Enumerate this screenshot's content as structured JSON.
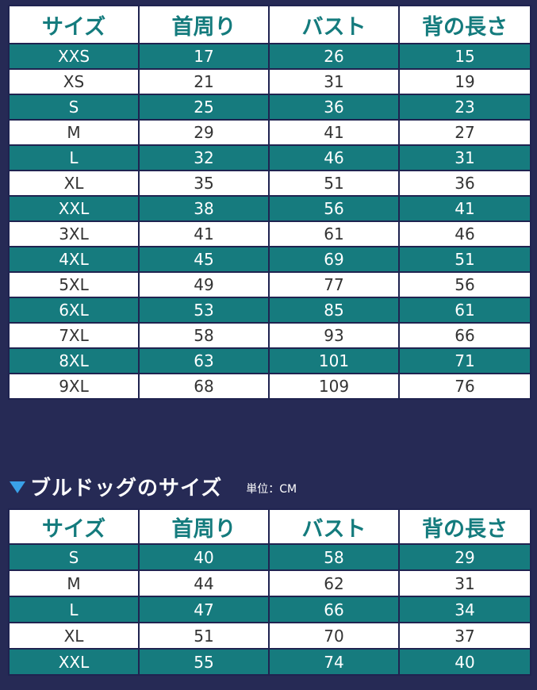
{
  "main_table": {
    "headers": [
      "サイズ",
      "首周り",
      "バスト",
      "背の長さ"
    ],
    "rows": [
      [
        "XXS",
        "17",
        "26",
        "15"
      ],
      [
        "XS",
        "21",
        "31",
        "19"
      ],
      [
        "S",
        "25",
        "36",
        "23"
      ],
      [
        "M",
        "29",
        "41",
        "27"
      ],
      [
        "L",
        "32",
        "46",
        "31"
      ],
      [
        "XL",
        "35",
        "51",
        "36"
      ],
      [
        "XXL",
        "38",
        "56",
        "41"
      ],
      [
        "3XL",
        "41",
        "61",
        "46"
      ],
      [
        "4XL",
        "45",
        "69",
        "51"
      ],
      [
        "5XL",
        "49",
        "77",
        "56"
      ],
      [
        "6XL",
        "53",
        "85",
        "61"
      ],
      [
        "7XL",
        "58",
        "93",
        "66"
      ],
      [
        "8XL",
        "63",
        "101",
        "71"
      ],
      [
        "9XL",
        "68",
        "109",
        "76"
      ]
    ]
  },
  "bulldog_section": {
    "title": "ブルドッグのサイズ",
    "unit": "単位：CM"
  },
  "bulldog_table": {
    "headers": [
      "サイズ",
      "首周り",
      "バスト",
      "背の長さ"
    ],
    "rows": [
      [
        "S",
        "40",
        "58",
        "29"
      ],
      [
        "M",
        "44",
        "62",
        "31"
      ],
      [
        "L",
        "47",
        "66",
        "34"
      ],
      [
        "XL",
        "51",
        "70",
        "37"
      ],
      [
        "XXL",
        "55",
        "74",
        "40"
      ]
    ]
  },
  "colors": {
    "background": "#262a55",
    "teal_row": "#167b7e",
    "white_row": "#ffffff",
    "header_text": "#147b7d",
    "triangle_icon": "#3aa1e8"
  }
}
